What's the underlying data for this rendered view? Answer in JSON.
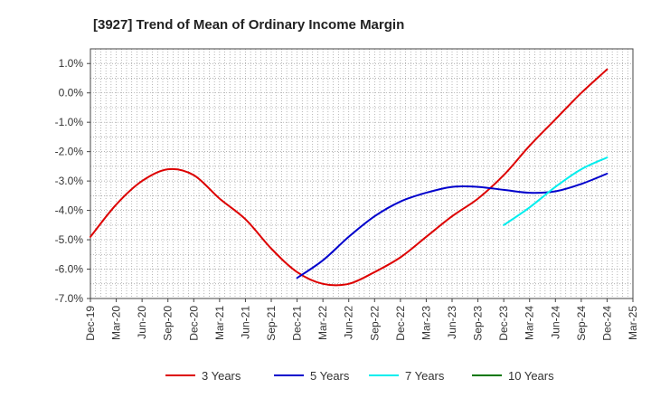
{
  "chart_data": {
    "type": "line",
    "title": "[3927]  Trend of Mean of Ordinary Income Margin",
    "xlabel": "",
    "ylabel": "",
    "categories": [
      "Dec-19",
      "Mar-20",
      "Jun-20",
      "Sep-20",
      "Dec-20",
      "Mar-21",
      "Jun-21",
      "Sep-21",
      "Dec-21",
      "Mar-22",
      "Jun-22",
      "Sep-22",
      "Dec-22",
      "Mar-23",
      "Jun-23",
      "Sep-23",
      "Dec-23",
      "Mar-24",
      "Jun-24",
      "Sep-24",
      "Dec-24",
      "Mar-25"
    ],
    "ylim": [
      -7.0,
      1.5
    ],
    "yticks": [
      1.0,
      0.0,
      -1.0,
      -2.0,
      -3.0,
      -4.0,
      -5.0,
      -6.0,
      -7.0
    ],
    "ytick_labels": [
      "1.0%",
      "0.0%",
      "-1.0%",
      "-2.0%",
      "-3.0%",
      "-4.0%",
      "-5.0%",
      "-6.0%",
      "-7.0%"
    ],
    "grid": true,
    "legend_position": "bottom",
    "series": [
      {
        "name": "3 Years",
        "color": "#dd0000",
        "values": [
          -4.9,
          -3.8,
          -3.0,
          -2.6,
          -2.8,
          -3.6,
          -4.3,
          -5.3,
          -6.1,
          -6.5,
          -6.5,
          -6.1,
          -5.6,
          -4.9,
          -4.2,
          -3.6,
          -2.8,
          -1.8,
          -0.9,
          0.0,
          0.8,
          null
        ]
      },
      {
        "name": "5 Years",
        "color": "#0000cc",
        "values": [
          null,
          null,
          null,
          null,
          null,
          null,
          null,
          null,
          -6.3,
          -5.7,
          -4.9,
          -4.2,
          -3.7,
          -3.4,
          -3.2,
          -3.2,
          -3.3,
          -3.4,
          -3.35,
          -3.1,
          -2.75,
          null
        ]
      },
      {
        "name": "7 Years",
        "color": "#00eeee",
        "values": [
          null,
          null,
          null,
          null,
          null,
          null,
          null,
          null,
          null,
          null,
          null,
          null,
          null,
          null,
          null,
          null,
          -4.5,
          -3.9,
          -3.2,
          -2.6,
          -2.2,
          null
        ]
      },
      {
        "name": "10 Years",
        "color": "#007700",
        "values": [
          null,
          null,
          null,
          null,
          null,
          null,
          null,
          null,
          null,
          null,
          null,
          null,
          null,
          null,
          null,
          null,
          null,
          null,
          null,
          null,
          null,
          null
        ]
      }
    ]
  }
}
